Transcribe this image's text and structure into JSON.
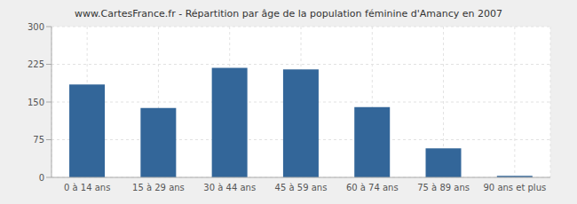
{
  "chart_data": {
    "type": "bar",
    "title": "www.CartesFrance.fr - Répartition par âge de la population féminine d'Amancy en 2007",
    "categories": [
      "0 à 14 ans",
      "15 à 29 ans",
      "30 à 44 ans",
      "45 à 59 ans",
      "60 à 74 ans",
      "75 à 89 ans",
      "90 ans et plus"
    ],
    "values": [
      185,
      138,
      218,
      215,
      140,
      58,
      3
    ],
    "color": "#336699",
    "ylim": [
      0,
      300
    ],
    "yticks": [
      0,
      75,
      150,
      225,
      300
    ],
    "grid": true
  }
}
